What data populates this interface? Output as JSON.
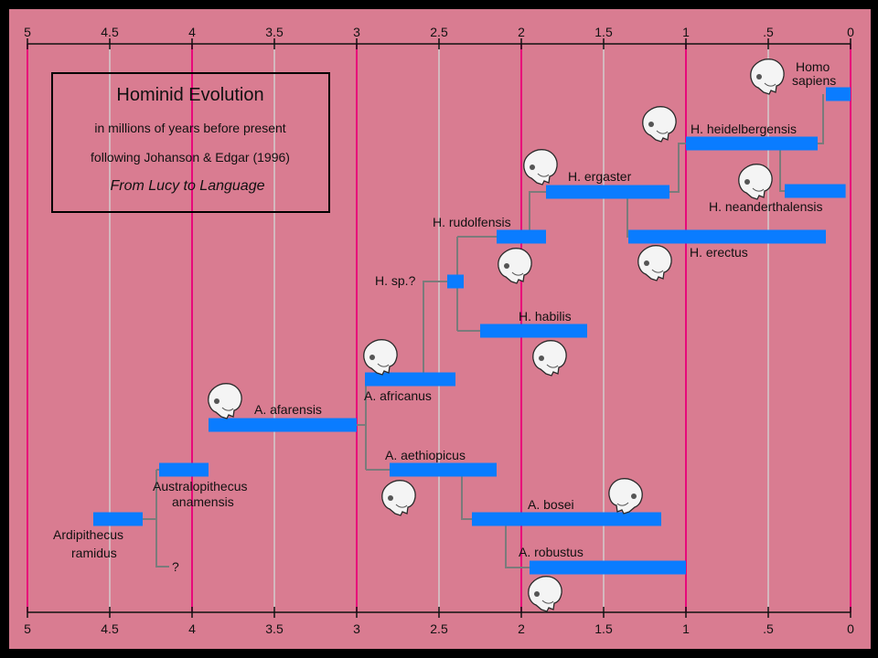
{
  "chart_data": {
    "type": "bar",
    "title": "Hominid Evolution",
    "subtitle_lines": [
      "in millions of years before present",
      "following Johanson & Edgar (1996)"
    ],
    "source_title": "From Lucy to Language",
    "xlim": [
      5,
      0
    ],
    "x_ticks": [
      {
        "value": 5,
        "label": "5"
      },
      {
        "value": 4.5,
        "label": "4.5"
      },
      {
        "value": 4,
        "label": "4"
      },
      {
        "value": 3.5,
        "label": "3.5"
      },
      {
        "value": 3,
        "label": "3"
      },
      {
        "value": 2.5,
        "label": "2.5"
      },
      {
        "value": 2,
        "label": "2"
      },
      {
        "value": 1.5,
        "label": "1.5"
      },
      {
        "value": 1,
        "label": "1"
      },
      {
        "value": 0.5,
        "label": ".5"
      },
      {
        "value": 0,
        "label": "0"
      }
    ],
    "major_gridlines": [
      5,
      4,
      3,
      2,
      1,
      0
    ],
    "minor_gridlines": [
      4.5,
      3.5,
      2.5,
      1.5,
      0.5
    ],
    "species": [
      {
        "id": "ramidus",
        "label": [
          "Ardipithecus",
          "ramidus"
        ],
        "start": 4.6,
        "end": 4.3,
        "label_pos": "below-left",
        "skull": false
      },
      {
        "id": "anamensis",
        "label": [
          "Australopithecus",
          "anamensis"
        ],
        "start": 4.2,
        "end": 3.9,
        "label_pos": "below",
        "skull": false
      },
      {
        "id": "afarensis",
        "label": [
          "A. afarensis"
        ],
        "start": 3.9,
        "end": 3.0,
        "label_pos": "above",
        "skull": true
      },
      {
        "id": "africanus",
        "label": [
          "A. africanus"
        ],
        "start": 2.95,
        "end": 2.4,
        "label_pos": "below",
        "skull": true
      },
      {
        "id": "aethiopicus",
        "label": [
          "A. aethiopicus"
        ],
        "start": 2.8,
        "end": 2.15,
        "label_pos": "above",
        "skull": true
      },
      {
        "id": "bosei",
        "label": [
          "A. bosei"
        ],
        "start": 2.3,
        "end": 1.15,
        "label_pos": "above",
        "skull": true
      },
      {
        "id": "robustus",
        "label": [
          "A. robustus"
        ],
        "start": 1.95,
        "end": 1.0,
        "label_pos": "above",
        "skull": true
      },
      {
        "id": "hsp",
        "label": [
          "H. sp.?"
        ],
        "start": 2.45,
        "end": 2.35,
        "label_pos": "left",
        "skull": false
      },
      {
        "id": "habilis",
        "label": [
          "H. habilis"
        ],
        "start": 2.25,
        "end": 1.6,
        "label_pos": "above",
        "skull": true
      },
      {
        "id": "rudolfensis",
        "label": [
          "H. rudolfensis"
        ],
        "start": 2.15,
        "end": 1.85,
        "label_pos": "above-left",
        "skull": true
      },
      {
        "id": "ergaster",
        "label": [
          "H. ergaster"
        ],
        "start": 1.85,
        "end": 1.1,
        "label_pos": "above",
        "skull": true
      },
      {
        "id": "erectus",
        "label": [
          "H. erectus"
        ],
        "start": 1.35,
        "end": 0.15,
        "label_pos": "below",
        "skull": true
      },
      {
        "id": "heidelbergensis",
        "label": [
          "H. heidelbergensis"
        ],
        "start": 1.0,
        "end": 0.2,
        "label_pos": "above",
        "skull": true
      },
      {
        "id": "neanderthalensis",
        "label": [
          "H. neanderthalensis"
        ],
        "start": 0.4,
        "end": 0.03,
        "label_pos": "below",
        "skull": true
      },
      {
        "id": "sapiens",
        "label": [
          "Homo",
          "sapiens"
        ],
        "start": 0.15,
        "end": 0.0,
        "label_pos": "above",
        "skull": true
      }
    ],
    "uncertain_marker": "?",
    "colors": {
      "background": "#d97c91",
      "bar": "#0a7cff",
      "major_grid": "#e8087a",
      "minor_grid": "#d3cbcd",
      "branch": "#7b7b7b",
      "frame": "#000000"
    }
  }
}
